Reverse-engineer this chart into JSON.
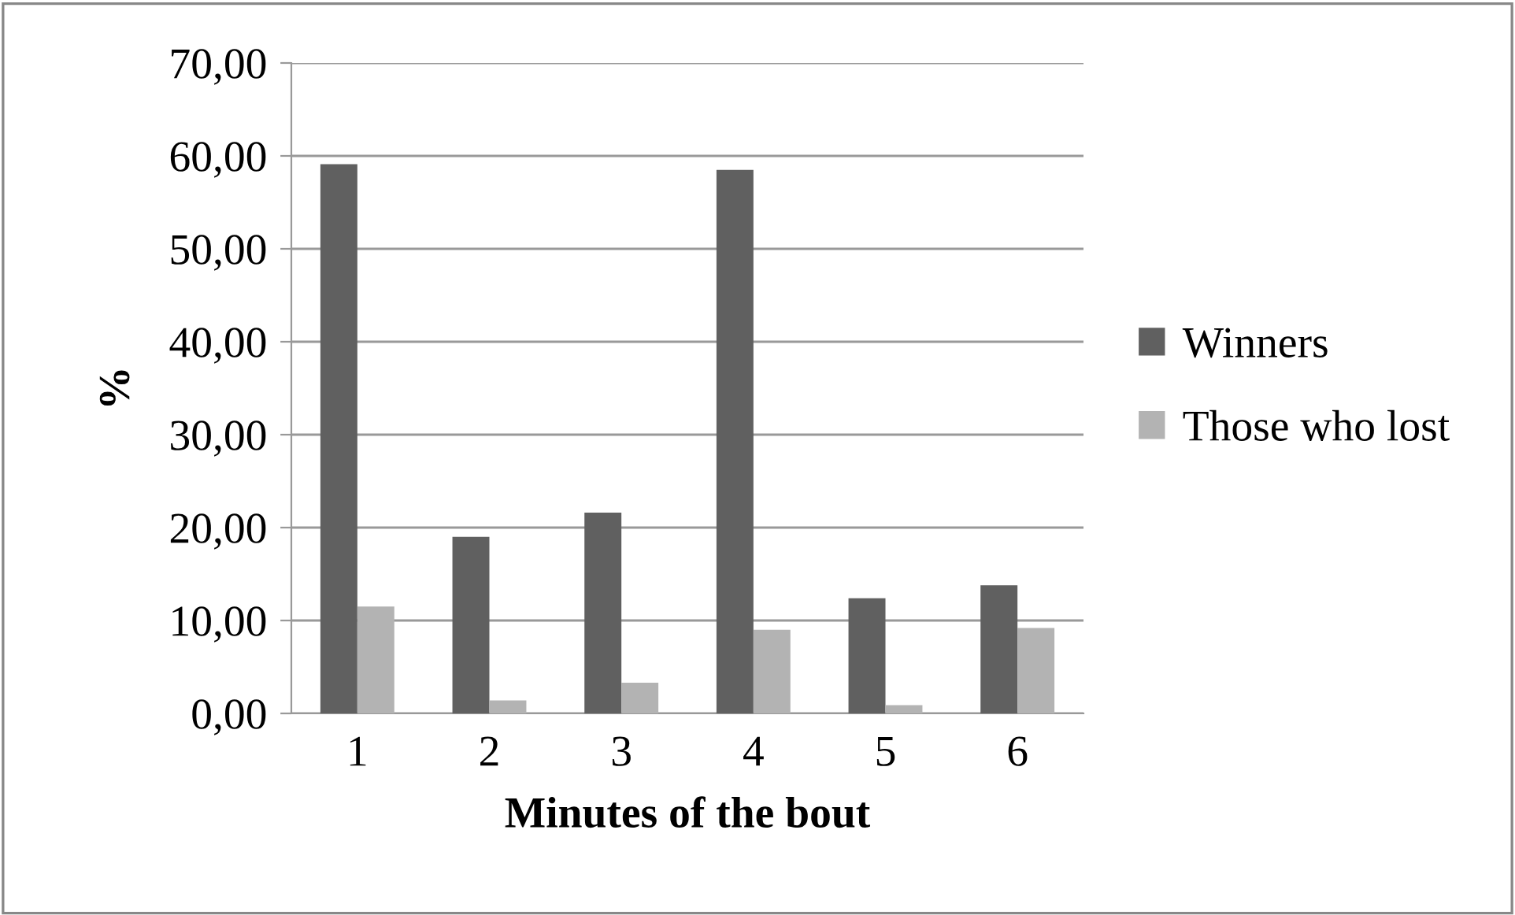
{
  "chart_data": {
    "type": "bar",
    "xlabel": "Minutes of the bout",
    "ylabel": "%",
    "categories": [
      "1",
      "2",
      "3",
      "4",
      "5",
      "6"
    ],
    "series": [
      {
        "name": "Winners",
        "color": "#606060",
        "values": [
          59.1,
          19.0,
          21.6,
          58.5,
          12.4,
          13.8
        ]
      },
      {
        "name": "Those who lost",
        "color": "#b3b3b3",
        "values": [
          11.5,
          1.4,
          3.3,
          9.0,
          0.9,
          9.2
        ]
      }
    ],
    "ylim": [
      0,
      70
    ],
    "yticks": [
      {
        "value": 0,
        "label": "0,00"
      },
      {
        "value": 10,
        "label": "10,00"
      },
      {
        "value": 20,
        "label": "20,00"
      },
      {
        "value": 30,
        "label": "30,00"
      },
      {
        "value": 40,
        "label": "40,00"
      },
      {
        "value": 50,
        "label": "50,00"
      },
      {
        "value": 60,
        "label": "60,00"
      },
      {
        "value": 70,
        "label": "70,00"
      }
    ],
    "grid": "y",
    "legend": "right"
  }
}
